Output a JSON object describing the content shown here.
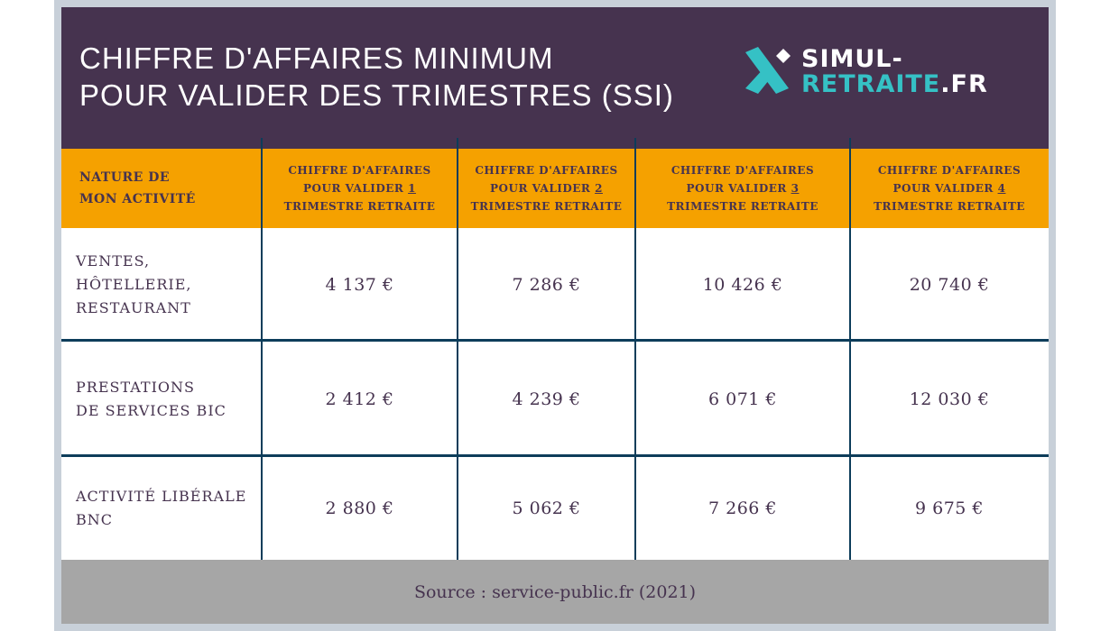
{
  "header": {
    "title_line1": "CHIFFRE D'AFFAIRES MINIMUM",
    "title_line2": "POUR VALIDER DES TRIMESTRES (SSI)",
    "logo_line1": "SIMUL-",
    "logo_line2_main": "RETRAITE",
    "logo_line2_suffix": ".FR"
  },
  "columns": [
    {
      "line1": "NATURE DE",
      "line2": "MON ACTIVITÉ"
    },
    {
      "line1": "CHIFFRE D'AFFAIRES",
      "line2": "POUR VALIDER",
      "num": "1",
      "line3": "TRIMESTRE RETRAITE"
    },
    {
      "line1": "CHIFFRE D'AFFAIRES",
      "line2": "POUR VALIDER",
      "num": "2",
      "line3": "TRIMESTRE RETRAITE"
    },
    {
      "line1": "CHIFFRE D'AFFAIRES",
      "line2": "POUR VALIDER",
      "num": "3",
      "line3": "TRIMESTRE RETRAITE"
    },
    {
      "line1": "CHIFFRE D'AFFAIRES",
      "line2": "POUR VALIDER",
      "num": "4",
      "line3": "TRIMESTRE RETRAITE"
    }
  ],
  "rows": [
    {
      "label": [
        "VENTES,",
        "HÔTELLERIE,",
        "RESTAURANT"
      ],
      "values": [
        "4 137 €",
        "7 286 €",
        "10 426 €",
        "20 740 €"
      ]
    },
    {
      "label": [
        "PRESTATIONS",
        "DE SERVICES BIC"
      ],
      "values": [
        "2 412 €",
        "4 239 €",
        "6 071 €",
        "12 030 €"
      ]
    },
    {
      "label": [
        "ACTIVITÉ LIBÉRALE",
        "BNC"
      ],
      "values": [
        "2 880 €",
        "5 062 €",
        "7 266 €",
        "9 675 €"
      ]
    }
  ],
  "footer": {
    "source": "Source : service-public.fr (2021)"
  },
  "colors": {
    "purple": "#46334f",
    "orange": "#f5a100",
    "teal": "#35c1c5",
    "line": "#0d3d5a",
    "footer": "#a6a6a6"
  }
}
